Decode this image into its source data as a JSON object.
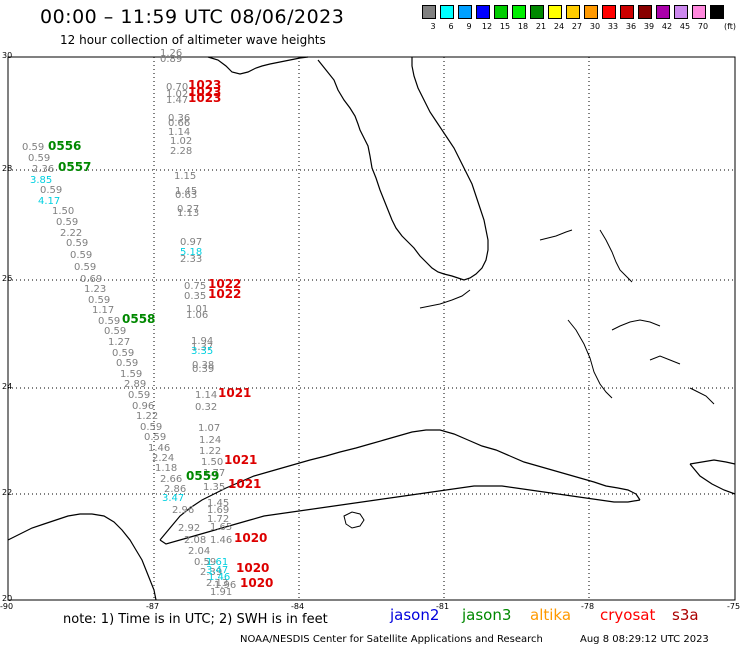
{
  "title": "00:00 – 11:59 UTC 08/06/2023",
  "subtitle": "12 hour collection of altimeter wave heights",
  "scale": {
    "unit": "(ft)",
    "bins": [
      {
        "label": "3",
        "color": "#808080"
      },
      {
        "label": "6",
        "color": "#00ffff"
      },
      {
        "label": "9",
        "color": "#00a0ff"
      },
      {
        "label": "12",
        "color": "#0000ff"
      },
      {
        "label": "15",
        "color": "#00cc00"
      },
      {
        "label": "18",
        "color": "#00ee00"
      },
      {
        "label": "21",
        "color": "#008800"
      },
      {
        "label": "24",
        "color": "#ffff00"
      },
      {
        "label": "27",
        "color": "#ffcc00"
      },
      {
        "label": "30",
        "color": "#ff9900"
      },
      {
        "label": "33",
        "color": "#ff0000"
      },
      {
        "label": "36",
        "color": "#cc0000"
      },
      {
        "label": "39",
        "color": "#880000"
      },
      {
        "label": "42",
        "color": "#aa00aa"
      },
      {
        "label": "45",
        "color": "#cc88ee"
      },
      {
        "label": "70",
        "color": "#ff88dd"
      },
      {
        "label": "",
        "color": "#000000"
      }
    ]
  },
  "axes": {
    "lat_labels": [
      "30",
      "28",
      "26",
      "24",
      "22",
      "20"
    ],
    "lon_labels": [
      "-90",
      "-87",
      "-84",
      "-81",
      "-78",
      "-75"
    ]
  },
  "labels": {
    "grey": [
      [
        "1.26",
        160,
        56
      ],
      [
        "0.89",
        160,
        62
      ],
      [
        "0.70",
        166,
        90
      ],
      [
        "1.02",
        166,
        97
      ],
      [
        "1.47",
        166,
        103
      ],
      [
        "0.36",
        168,
        121
      ],
      [
        "0.66",
        168,
        126
      ],
      [
        "1.14",
        168,
        135
      ],
      [
        "1.02",
        170,
        144
      ],
      [
        "2.28",
        170,
        154
      ],
      [
        "1.15",
        174,
        179
      ],
      [
        "1.45",
        175,
        194
      ],
      [
        "0.63",
        175,
        198
      ],
      [
        "0.27",
        177,
        212
      ],
      [
        "1.13",
        177,
        216
      ],
      [
        "0.97",
        180,
        245
      ],
      [
        "2.33",
        180,
        262
      ],
      [
        "0.75",
        184,
        289
      ],
      [
        "0.35",
        184,
        299
      ],
      [
        "1.01",
        186,
        312
      ],
      [
        "1.06",
        186,
        318
      ],
      [
        "1.94",
        191,
        344
      ],
      [
        "1.37",
        191,
        350
      ],
      [
        "0.38",
        192,
        368
      ],
      [
        "0.39",
        192,
        372
      ],
      [
        "1.14",
        195,
        398
      ],
      [
        "0.32",
        195,
        410
      ],
      [
        "1.07",
        198,
        431
      ],
      [
        "1.24",
        199,
        443
      ],
      [
        "1.22",
        199,
        454
      ],
      [
        "1.50",
        201,
        465
      ],
      [
        "1.77",
        203,
        476
      ],
      [
        "1.35",
        203,
        490
      ],
      [
        "1.45",
        207,
        506
      ],
      [
        "1.69",
        207,
        513
      ],
      [
        "1.72",
        207,
        522
      ],
      [
        "1.65",
        210,
        530
      ],
      [
        "1.46",
        210,
        543
      ],
      [
        "0.59",
        22,
        150
      ],
      [
        "0.59",
        28,
        161
      ],
      [
        "2.36",
        32,
        172
      ],
      [
        "0.59",
        40,
        193
      ],
      [
        "1.50",
        52,
        214
      ],
      [
        "0.59",
        56,
        225
      ],
      [
        "2.22",
        60,
        236
      ],
      [
        "0.59",
        66,
        246
      ],
      [
        "0.59",
        70,
        258
      ],
      [
        "0.59",
        74,
        270
      ],
      [
        "0.69",
        80,
        282
      ],
      [
        "1.23",
        84,
        292
      ],
      [
        "0.59",
        88,
        303
      ],
      [
        "1.17",
        92,
        313
      ],
      [
        "0.59",
        98,
        324
      ],
      [
        "0.59",
        104,
        334
      ],
      [
        "1.27",
        108,
        345
      ],
      [
        "0.59",
        112,
        356
      ],
      [
        "0.59",
        116,
        366
      ],
      [
        "1.59",
        120,
        377
      ],
      [
        "2.89",
        124,
        387
      ],
      [
        "0.59",
        128,
        398
      ],
      [
        "0.96",
        132,
        409
      ],
      [
        "1.22",
        136,
        419
      ],
      [
        "0.59",
        140,
        430
      ],
      [
        "0.59",
        144,
        440
      ],
      [
        "1.46",
        148,
        451
      ],
      [
        "2.24",
        152,
        461
      ],
      [
        "1.18",
        155,
        471
      ],
      [
        "2.66",
        160,
        482
      ],
      [
        "2.86",
        164,
        492
      ],
      [
        "2.96",
        172,
        513
      ],
      [
        "2.92",
        178,
        531
      ],
      [
        "2.08",
        184,
        543
      ],
      [
        "2.04",
        188,
        554
      ],
      [
        "0.59",
        194,
        565
      ],
      [
        "2.39",
        200,
        575
      ],
      [
        "2.13",
        206,
        586
      ],
      [
        "1.91",
        210,
        595
      ],
      [
        "1.96",
        214,
        588
      ]
    ],
    "cyan": [
      [
        "3.85",
        30,
        183
      ],
      [
        "4.17",
        38,
        204
      ],
      [
        "5.18",
        180,
        255
      ],
      [
        "3.35",
        191,
        354
      ],
      [
        "3.47",
        162,
        501
      ],
      [
        "1.61",
        206,
        565
      ],
      [
        "3.47",
        206,
        573
      ],
      [
        "1.46",
        208,
        580
      ]
    ],
    "red": [
      [
        "1023",
        188,
        89
      ],
      [
        "1023",
        188,
        96
      ],
      [
        "1023",
        188,
        102
      ],
      [
        "1022",
        208,
        288
      ],
      [
        "1022",
        208,
        298
      ],
      [
        "1021",
        218,
        397
      ],
      [
        "1021",
        224,
        464
      ],
      [
        "1021",
        228,
        488
      ],
      [
        "1020",
        234,
        542
      ],
      [
        "1020",
        236,
        572
      ],
      [
        "1020",
        240,
        587
      ]
    ],
    "green": [
      [
        "0556",
        48,
        150
      ],
      [
        "0557",
        58,
        171
      ],
      [
        "0558",
        122,
        323
      ],
      [
        "0559",
        186,
        480
      ]
    ]
  },
  "note": "note: 1) Time is in UTC; 2) SWH is in feet",
  "legend": [
    {
      "name": "jason2",
      "color": "#0000dd"
    },
    {
      "name": "jason3",
      "color": "#008800"
    },
    {
      "name": "altika",
      "color": "#ff9900"
    },
    {
      "name": "cryosat",
      "color": "#ff0000"
    },
    {
      "name": "s3a",
      "color": "#aa0000"
    }
  ],
  "credit": "NOAA/NESDIS Center for Satellite Applications and Research",
  "timestamp": "Aug  8 08:29:12 UTC 2023"
}
